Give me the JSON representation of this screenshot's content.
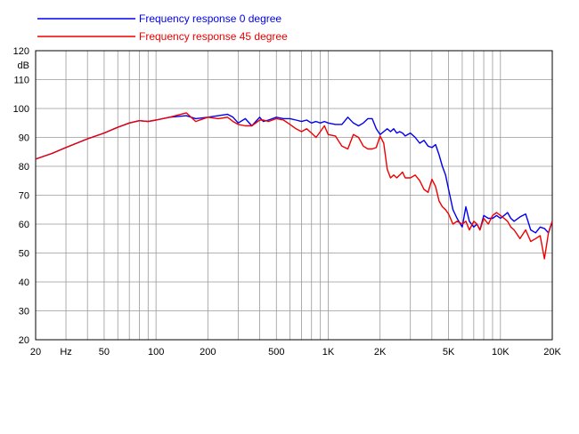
{
  "chart_data": {
    "type": "line",
    "x_scale": "log",
    "xlim": [
      20,
      20000
    ],
    "ylim": [
      20,
      120
    ],
    "ylabel": "dB",
    "xlabel": "Hz",
    "grid": true,
    "legend_placement": "top-left",
    "x_tick_labels": [
      {
        "value": 20,
        "label": "20"
      },
      {
        "value": 30,
        "label": "Hz"
      },
      {
        "value": 50,
        "label": "50"
      },
      {
        "value": 100,
        "label": "100"
      },
      {
        "value": 200,
        "label": "200"
      },
      {
        "value": 500,
        "label": "500"
      },
      {
        "value": 1000,
        "label": "1K"
      },
      {
        "value": 2000,
        "label": "2K"
      },
      {
        "value": 5000,
        "label": "5K"
      },
      {
        "value": 10000,
        "label": "10K"
      },
      {
        "value": 20000,
        "label": "20K"
      }
    ],
    "y_ticks": [
      20,
      30,
      40,
      50,
      60,
      70,
      80,
      90,
      100,
      110,
      120
    ],
    "series": [
      {
        "name": "Frequency response 0 degree",
        "color": "#0000ee",
        "x": [
          20,
          25,
          30,
          40,
          50,
          60,
          70,
          80,
          90,
          100,
          120,
          150,
          170,
          200,
          230,
          260,
          280,
          300,
          330,
          360,
          400,
          420,
          450,
          500,
          550,
          600,
          650,
          700,
          750,
          800,
          850,
          900,
          950,
          1000,
          1100,
          1200,
          1300,
          1400,
          1500,
          1600,
          1700,
          1800,
          1900,
          2000,
          2100,
          2200,
          2300,
          2400,
          2500,
          2600,
          2700,
          2800,
          3000,
          3200,
          3400,
          3600,
          3800,
          4000,
          4200,
          4400,
          4600,
          4800,
          5000,
          5300,
          5600,
          6000,
          6300,
          6600,
          7000,
          7300,
          7600,
          8000,
          8500,
          9000,
          9500,
          10000,
          10500,
          11000,
          11500,
          12000,
          13000,
          14000,
          15000,
          16000,
          17000,
          18000,
          19000,
          20000
        ],
        "y": [
          82.5,
          84.5,
          86.5,
          89.5,
          91.5,
          93.5,
          95,
          95.8,
          95.5,
          96,
          97,
          97.5,
          96.5,
          97,
          97.5,
          98,
          97,
          95,
          96.5,
          94,
          97,
          95.5,
          96,
          97,
          96.5,
          96.5,
          96,
          95.5,
          96,
          95,
          95.5,
          95,
          95.5,
          95,
          94.5,
          94.5,
          97,
          95,
          94,
          95,
          96.5,
          96.5,
          93,
          91,
          92,
          93,
          92,
          93,
          91.5,
          92,
          91.5,
          90.5,
          91.5,
          90,
          88,
          89,
          87,
          86.5,
          87.5,
          84,
          80,
          77,
          72,
          65,
          62,
          59,
          66,
          61,
          59,
          60,
          58,
          63,
          62,
          62,
          63,
          62,
          63,
          64,
          62,
          61,
          62.5,
          63.5,
          58,
          57,
          59,
          58.5,
          57,
          61
        ]
      },
      {
        "name": "Frequency response 45 degree",
        "color": "#ee0000",
        "x": [
          20,
          25,
          30,
          40,
          50,
          60,
          70,
          80,
          90,
          100,
          120,
          150,
          170,
          200,
          230,
          260,
          280,
          300,
          330,
          360,
          400,
          420,
          450,
          500,
          550,
          600,
          650,
          700,
          750,
          800,
          850,
          900,
          950,
          1000,
          1100,
          1200,
          1300,
          1400,
          1500,
          1600,
          1700,
          1800,
          1900,
          2000,
          2100,
          2200,
          2300,
          2400,
          2500,
          2600,
          2700,
          2800,
          3000,
          3200,
          3400,
          3600,
          3800,
          4000,
          4200,
          4400,
          4600,
          4800,
          5000,
          5300,
          5600,
          6000,
          6300,
          6600,
          7000,
          7300,
          7600,
          8000,
          8500,
          9000,
          9500,
          10000,
          10500,
          11000,
          11500,
          12000,
          13000,
          14000,
          15000,
          16000,
          17000,
          18000,
          19000,
          20000
        ],
        "y": [
          82.5,
          84.5,
          86.5,
          89.5,
          91.5,
          93.5,
          95,
          95.8,
          95.5,
          96,
          97,
          98.5,
          95.5,
          97,
          96.5,
          97,
          95.5,
          94.5,
          94,
          94,
          96,
          96,
          95.5,
          96.5,
          96,
          94.5,
          93,
          92,
          93,
          91.5,
          90,
          92,
          94,
          91,
          90.5,
          87,
          86,
          91,
          90,
          87,
          86,
          86,
          86.5,
          90.5,
          88,
          79,
          76,
          77,
          76,
          77,
          78,
          76,
          76,
          77,
          75,
          72,
          71,
          75.5,
          73,
          68,
          66,
          65,
          63.5,
          60,
          61,
          60,
          61,
          58,
          61,
          60,
          58,
          62,
          60,
          63,
          64,
          63,
          62,
          61,
          59,
          58,
          55,
          58,
          54,
          55,
          56,
          48,
          57,
          61
        ]
      }
    ]
  }
}
